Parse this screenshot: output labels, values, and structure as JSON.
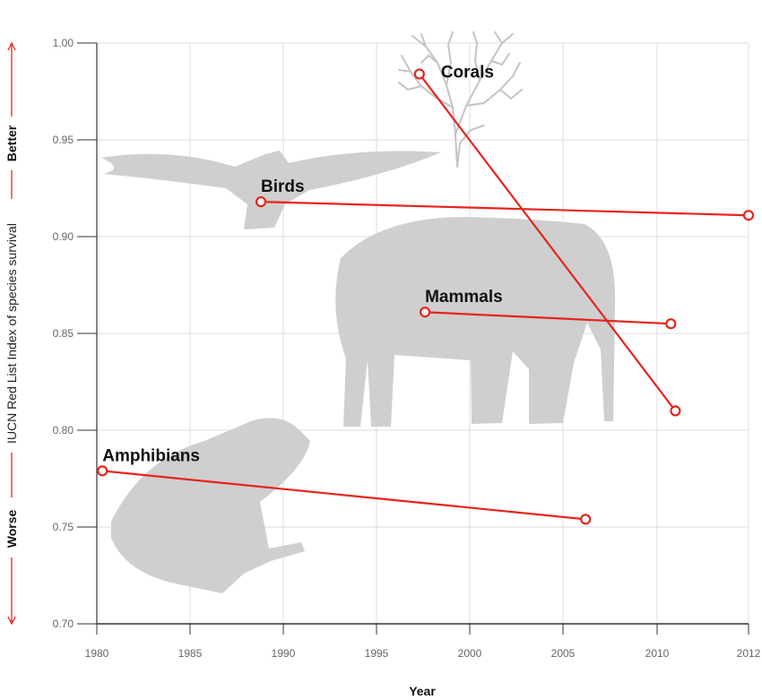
{
  "chart_data": {
    "type": "line",
    "xlabel": "Year",
    "ylabel": "IUCN Red List Index of species survival",
    "ylabel_better": "Better",
    "ylabel_worse": "Worse",
    "x_ticks": [
      "1980",
      "1985",
      "1990",
      "1995",
      "2000",
      "2005",
      "2010",
      "2012"
    ],
    "y_ticks": [
      "0.70",
      "0.75",
      "0.80",
      "0.85",
      "0.90",
      "0.95",
      "1.00"
    ],
    "xlim": [
      1980,
      2012
    ],
    "ylim": [
      0.7,
      1.0
    ],
    "grid": true,
    "colors": {
      "series": "#e8231c",
      "silhouette": "#cfcfcf",
      "grid": "#dddddd",
      "axis": "#333333"
    },
    "series": [
      {
        "name": "Corals",
        "icon": "coral-silhouette",
        "x": [
          1997.3,
          2010.4
        ],
        "y": [
          0.984,
          0.81
        ]
      },
      {
        "name": "Birds",
        "icon": "bird-silhouette",
        "x": [
          1988.8,
          2012
        ],
        "y": [
          0.918,
          0.911
        ]
      },
      {
        "name": "Mammals",
        "icon": "elephant-silhouette",
        "x": [
          1997.6,
          2010.3
        ],
        "y": [
          0.861,
          0.855
        ]
      },
      {
        "name": "Amphibians",
        "icon": "frog-silhouette",
        "x": [
          1980.3,
          2006.2
        ],
        "y": [
          0.779,
          0.754
        ]
      }
    ]
  }
}
